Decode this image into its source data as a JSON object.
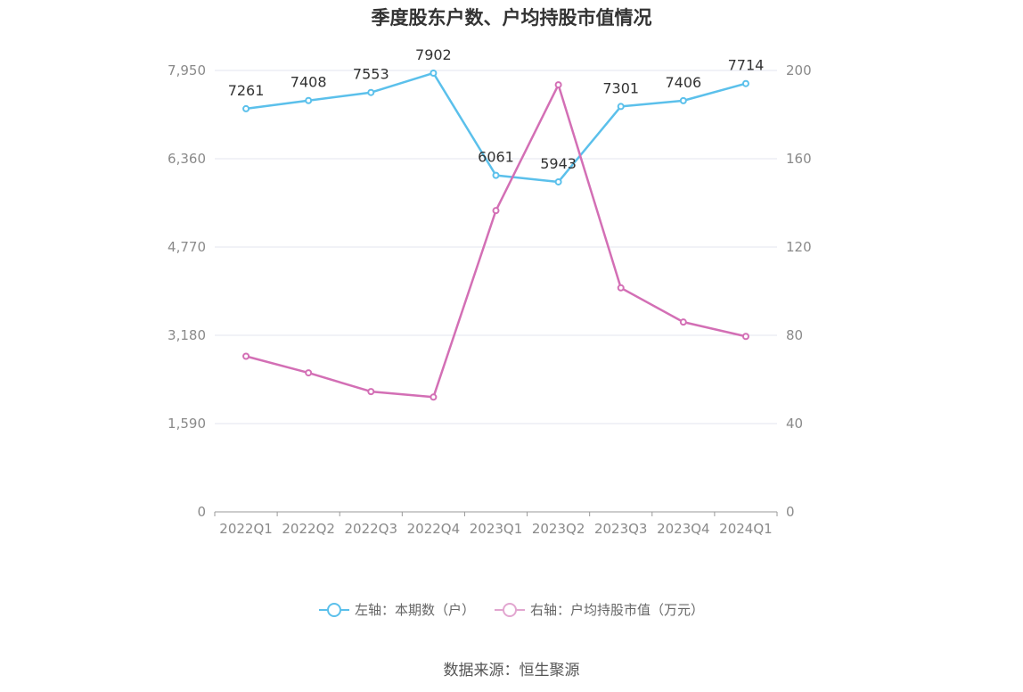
{
  "title": "季度股东户数、户均持股市值情况",
  "source": "数据来源：恒生聚源",
  "colors": {
    "left_series": "#5bc0eb",
    "right_series": "#d36fb5",
    "grid": "#e3e6ef",
    "axis": "#999999"
  },
  "legend": [
    {
      "label": "左轴：本期数（户）",
      "color": "#5bc0eb"
    },
    {
      "label": "右轴：户均持股市值（万元）",
      "color": "#e2a6d0"
    }
  ],
  "chart_data": {
    "type": "line",
    "title": "季度股东户数、户均持股市值情况",
    "categories": [
      "2022Q1",
      "2022Q2",
      "2022Q3",
      "2022Q4",
      "2023Q1",
      "2023Q2",
      "2023Q3",
      "2023Q4",
      "2024Q1"
    ],
    "left_axis": {
      "ticks": [
        "0",
        "1,590",
        "3,180",
        "4,770",
        "6,360",
        "7,950"
      ],
      "ylim": [
        0,
        7950
      ]
    },
    "right_axis": {
      "ticks": [
        "0",
        "40",
        "80",
        "120",
        "160",
        "200"
      ],
      "ylim": [
        0,
        200
      ]
    },
    "grid": true,
    "legend_position": "bottom",
    "series": [
      {
        "name": "左轴：本期数（户）",
        "axis": "left",
        "values": [
          7261,
          7408,
          7553,
          7902,
          6061,
          5943,
          7301,
          7406,
          7714
        ],
        "labels": [
          "7261",
          "7408",
          "7553",
          "7902",
          "6061",
          "5943",
          "7301",
          "7406",
          "7714"
        ]
      },
      {
        "name": "右轴：户均持股市值（万元）",
        "axis": "right",
        "values": [
          70.5,
          63,
          54.5,
          52,
          136.5,
          193.5,
          101.5,
          86,
          79.5
        ]
      }
    ]
  }
}
